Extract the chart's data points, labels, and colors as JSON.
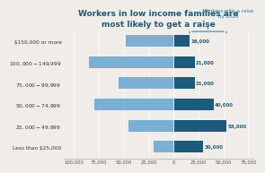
{
  "title": "Workers in low income families are\nmost likely to get a raise",
  "annotation": "Workers with a raise\nby 2020",
  "categories": [
    "Less than $25,000",
    "$25,000 - $49,999",
    "$50,000 - $74,999",
    "$75,000 - $99,999",
    "$100,000 - $149,999",
    "$150,000 or more"
  ],
  "left_values": [
    20000,
    45000,
    80000,
    55000,
    85000,
    48000
  ],
  "right_values": [
    30000,
    53000,
    40000,
    21000,
    21000,
    16000
  ],
  "right_labels": [
    "30,000",
    "53,000",
    "40,000",
    "21,000",
    "21,000",
    "16,000"
  ],
  "left_color": "#7bafd4",
  "right_color": "#1a5c7a",
  "title_color": "#1a5c7a",
  "annotation_color": "#1a7ab5",
  "background_color": "#f0ede8",
  "xlim_left": -110000,
  "xlim_right": 80000,
  "xticks": [
    -100000,
    -75000,
    -50000,
    -25000,
    0,
    25000,
    50000,
    75000
  ],
  "xtick_labels": [
    "100,000",
    "75,000",
    "50,000",
    "25,000",
    "0",
    "25,000",
    "50,000",
    "75,000"
  ]
}
